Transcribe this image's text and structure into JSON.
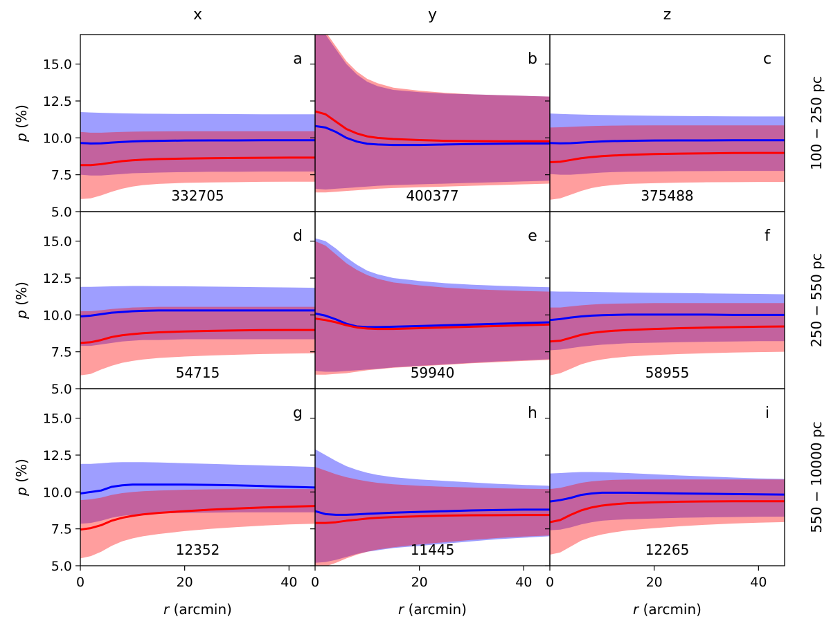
{
  "chart_data": {
    "type": "area",
    "columns": [
      "x",
      "y",
      "z"
    ],
    "rows": [
      "100 − 250 pc",
      "250 − 550 pc",
      "550 − 10000 pc"
    ],
    "xlabel_italic": "r",
    "xlabel_rest": " (arcmin)",
    "ylabel_italic": "p",
    "ylabel_rest": " (%)",
    "xlim": [
      0,
      45
    ],
    "ylim": [
      5.0,
      17.0
    ],
    "xticks": [
      0,
      20,
      40
    ],
    "yticks": [
      5.0,
      7.5,
      10.0,
      12.5,
      15.0
    ],
    "ytick_labels": [
      "5.0",
      "7.5",
      "10.0",
      "12.5",
      "15.0"
    ],
    "colors": {
      "blue_line": "#0000ff",
      "red_line": "#ff0000",
      "blue_band": "#9d9dfb",
      "red_band": "#fb9d9d",
      "overlap": "#c0589a"
    },
    "r": [
      0,
      2,
      4,
      6,
      8,
      10,
      12,
      15,
      20,
      25,
      30,
      35,
      40,
      45
    ],
    "panels": [
      {
        "letter": "a",
        "count": "332705",
        "blue": {
          "mid": [
            9.65,
            9.62,
            9.63,
            9.68,
            9.72,
            9.76,
            9.78,
            9.8,
            9.82,
            9.83,
            9.83,
            9.84,
            9.84,
            9.84
          ],
          "lo": [
            7.5,
            7.45,
            7.45,
            7.5,
            7.55,
            7.6,
            7.62,
            7.65,
            7.68,
            7.7,
            7.7,
            7.72,
            7.72,
            7.72
          ],
          "hi": [
            11.75,
            11.72,
            11.7,
            11.68,
            11.66,
            11.65,
            11.64,
            11.63,
            11.62,
            11.62,
            11.61,
            11.6,
            11.6,
            11.6
          ]
        },
        "red": {
          "mid": [
            8.15,
            8.15,
            8.22,
            8.32,
            8.42,
            8.48,
            8.52,
            8.56,
            8.6,
            8.62,
            8.64,
            8.65,
            8.66,
            8.66
          ],
          "lo": [
            5.85,
            5.9,
            6.1,
            6.35,
            6.55,
            6.7,
            6.8,
            6.88,
            6.95,
            6.98,
            7.0,
            7.02,
            7.03,
            7.03
          ],
          "hi": [
            10.4,
            10.35,
            10.35,
            10.38,
            10.4,
            10.42,
            10.43,
            10.44,
            10.45,
            10.45,
            10.45,
            10.45,
            10.45,
            10.45
          ]
        }
      },
      {
        "letter": "b",
        "count": "400377",
        "blue": {
          "mid": [
            10.8,
            10.7,
            10.4,
            10.0,
            9.75,
            9.6,
            9.55,
            9.52,
            9.52,
            9.55,
            9.58,
            9.6,
            9.62,
            9.62
          ],
          "lo": [
            6.55,
            6.5,
            6.55,
            6.6,
            6.65,
            6.7,
            6.75,
            6.8,
            6.85,
            6.9,
            6.95,
            7.0,
            7.05,
            7.1
          ],
          "hi": [
            17.5,
            17.0,
            16.0,
            15.0,
            14.3,
            13.8,
            13.5,
            13.25,
            13.1,
            13.0,
            12.95,
            12.9,
            12.85,
            12.8
          ]
        },
        "red": {
          "mid": [
            11.8,
            11.6,
            11.1,
            10.6,
            10.3,
            10.1,
            10.0,
            9.92,
            9.85,
            9.8,
            9.78,
            9.77,
            9.77,
            9.77
          ],
          "lo": [
            6.3,
            6.3,
            6.35,
            6.4,
            6.45,
            6.5,
            6.55,
            6.6,
            6.65,
            6.7,
            6.75,
            6.8,
            6.85,
            6.9
          ],
          "hi": [
            18.0,
            17.2,
            16.2,
            15.2,
            14.5,
            14.0,
            13.7,
            13.4,
            13.2,
            13.05,
            12.95,
            12.9,
            12.85,
            12.8
          ]
        }
      },
      {
        "letter": "c",
        "count": "375488",
        "blue": {
          "mid": [
            9.65,
            9.63,
            9.64,
            9.68,
            9.72,
            9.76,
            9.78,
            9.8,
            9.82,
            9.83,
            9.83,
            9.84,
            9.84,
            9.84
          ],
          "lo": [
            7.55,
            7.5,
            7.5,
            7.55,
            7.6,
            7.65,
            7.68,
            7.7,
            7.72,
            7.74,
            7.75,
            7.76,
            7.76,
            7.76
          ],
          "hi": [
            11.65,
            11.62,
            11.6,
            11.58,
            11.56,
            11.55,
            11.54,
            11.52,
            11.5,
            11.48,
            11.47,
            11.46,
            11.45,
            11.45
          ]
        },
        "red": {
          "mid": [
            8.35,
            8.38,
            8.5,
            8.62,
            8.7,
            8.76,
            8.8,
            8.85,
            8.9,
            8.93,
            8.95,
            8.97,
            8.98,
            8.98
          ],
          "lo": [
            5.8,
            5.9,
            6.15,
            6.4,
            6.6,
            6.72,
            6.8,
            6.88,
            6.93,
            6.97,
            6.99,
            7.0,
            7.01,
            7.01
          ],
          "hi": [
            10.7,
            10.72,
            10.75,
            10.78,
            10.8,
            10.82,
            10.83,
            10.84,
            10.85,
            10.85,
            10.85,
            10.85,
            10.85,
            10.85
          ]
        }
      },
      {
        "letter": "d",
        "count": "54715",
        "blue": {
          "mid": [
            9.9,
            9.95,
            10.05,
            10.15,
            10.2,
            10.25,
            10.28,
            10.3,
            10.3,
            10.3,
            10.3,
            10.3,
            10.3,
            10.3
          ],
          "lo": [
            7.9,
            7.9,
            8.0,
            8.1,
            8.2,
            8.25,
            8.3,
            8.3,
            8.35,
            8.35,
            8.35,
            8.35,
            8.35,
            8.35
          ],
          "hi": [
            11.9,
            11.9,
            11.92,
            11.94,
            11.95,
            11.96,
            11.96,
            11.95,
            11.94,
            11.92,
            11.9,
            11.88,
            11.86,
            11.84
          ]
        },
        "red": {
          "mid": [
            8.1,
            8.15,
            8.3,
            8.5,
            8.62,
            8.7,
            8.76,
            8.82,
            8.88,
            8.92,
            8.95,
            8.97,
            8.98,
            8.98
          ],
          "lo": [
            5.9,
            6.0,
            6.3,
            6.55,
            6.75,
            6.88,
            6.98,
            7.08,
            7.18,
            7.25,
            7.3,
            7.35,
            7.38,
            7.4
          ],
          "hi": [
            10.25,
            10.25,
            10.32,
            10.4,
            10.45,
            10.5,
            10.52,
            10.55,
            10.55,
            10.55,
            10.55,
            10.55,
            10.55,
            10.55
          ]
        }
      },
      {
        "letter": "e",
        "count": "59940",
        "blue": {
          "mid": [
            10.1,
            9.95,
            9.7,
            9.4,
            9.22,
            9.18,
            9.18,
            9.2,
            9.25,
            9.3,
            9.35,
            9.4,
            9.45,
            9.5
          ],
          "lo": [
            6.2,
            6.15,
            6.15,
            6.2,
            6.25,
            6.3,
            6.35,
            6.45,
            6.55,
            6.65,
            6.75,
            6.85,
            6.92,
            7.0
          ],
          "hi": [
            15.2,
            15.0,
            14.5,
            13.9,
            13.4,
            13.0,
            12.75,
            12.5,
            12.3,
            12.15,
            12.05,
            11.98,
            11.92,
            11.88
          ]
        },
        "red": {
          "mid": [
            9.75,
            9.65,
            9.5,
            9.3,
            9.15,
            9.08,
            9.05,
            9.05,
            9.1,
            9.15,
            9.2,
            9.25,
            9.3,
            9.35
          ],
          "lo": [
            5.95,
            5.95,
            6.0,
            6.05,
            6.15,
            6.25,
            6.32,
            6.42,
            6.52,
            6.62,
            6.72,
            6.8,
            6.88,
            6.95
          ],
          "hi": [
            15.0,
            14.7,
            14.1,
            13.5,
            13.05,
            12.7,
            12.45,
            12.2,
            12.0,
            11.85,
            11.75,
            11.68,
            11.62,
            11.58
          ]
        }
      },
      {
        "letter": "f",
        "count": "58955",
        "blue": {
          "mid": [
            9.65,
            9.72,
            9.82,
            9.9,
            9.95,
            9.98,
            10.0,
            10.02,
            10.02,
            10.02,
            10.02,
            10.0,
            10.0,
            10.0
          ],
          "lo": [
            7.6,
            7.65,
            7.75,
            7.85,
            7.92,
            7.98,
            8.02,
            8.08,
            8.12,
            8.15,
            8.18,
            8.2,
            8.22,
            8.22
          ],
          "hi": [
            11.6,
            11.58,
            11.58,
            11.57,
            11.56,
            11.55,
            11.54,
            11.52,
            11.5,
            11.48,
            11.46,
            11.44,
            11.42,
            11.4
          ]
        },
        "red": {
          "mid": [
            8.2,
            8.25,
            8.45,
            8.65,
            8.78,
            8.86,
            8.92,
            8.98,
            9.05,
            9.1,
            9.14,
            9.17,
            9.2,
            9.22
          ],
          "lo": [
            5.9,
            6.05,
            6.35,
            6.65,
            6.85,
            6.98,
            7.08,
            7.18,
            7.28,
            7.35,
            7.4,
            7.45,
            7.48,
            7.5
          ],
          "hi": [
            10.5,
            10.5,
            10.58,
            10.65,
            10.7,
            10.74,
            10.76,
            10.78,
            10.8,
            10.8,
            10.8,
            10.8,
            10.8,
            10.8
          ]
        }
      },
      {
        "letter": "g",
        "count": "12352",
        "blue": {
          "mid": [
            9.9,
            10.0,
            10.1,
            10.35,
            10.45,
            10.5,
            10.5,
            10.5,
            10.5,
            10.48,
            10.45,
            10.4,
            10.35,
            10.3
          ],
          "lo": [
            7.85,
            7.9,
            8.05,
            8.25,
            8.38,
            8.45,
            8.5,
            8.55,
            8.58,
            8.6,
            8.62,
            8.62,
            8.62,
            8.62
          ],
          "hi": [
            11.9,
            11.9,
            11.95,
            12.0,
            12.02,
            12.02,
            12.02,
            12.0,
            11.95,
            11.9,
            11.85,
            11.8,
            11.75,
            11.7
          ]
        },
        "red": {
          "mid": [
            7.45,
            7.55,
            7.75,
            8.05,
            8.25,
            8.38,
            8.48,
            8.58,
            8.7,
            8.8,
            8.88,
            8.95,
            9.0,
            9.05
          ],
          "lo": [
            5.5,
            5.65,
            5.95,
            6.35,
            6.65,
            6.85,
            7.0,
            7.15,
            7.35,
            7.5,
            7.62,
            7.72,
            7.8,
            7.85
          ],
          "hi": [
            9.45,
            9.5,
            9.62,
            9.8,
            9.92,
            10.0,
            10.05,
            10.1,
            10.15,
            10.18,
            10.2,
            10.2,
            10.2,
            10.2
          ]
        }
      },
      {
        "letter": "h",
        "count": "11445",
        "blue": {
          "mid": [
            8.7,
            8.5,
            8.45,
            8.45,
            8.48,
            8.52,
            8.55,
            8.6,
            8.65,
            8.7,
            8.75,
            8.78,
            8.8,
            8.8
          ],
          "lo": [
            5.2,
            5.25,
            5.4,
            5.6,
            5.8,
            5.95,
            6.05,
            6.2,
            6.35,
            6.5,
            6.65,
            6.8,
            6.9,
            7.0
          ],
          "hi": [
            12.9,
            12.5,
            12.1,
            11.75,
            11.5,
            11.3,
            11.15,
            11.0,
            10.85,
            10.75,
            10.65,
            10.55,
            10.48,
            10.42
          ]
        },
        "red": {
          "mid": [
            7.9,
            7.9,
            7.95,
            8.05,
            8.12,
            8.2,
            8.25,
            8.3,
            8.35,
            8.4,
            8.42,
            8.43,
            8.44,
            8.44
          ],
          "lo": [
            4.8,
            4.95,
            5.2,
            5.5,
            5.75,
            5.95,
            6.1,
            6.25,
            6.45,
            6.6,
            6.75,
            6.88,
            6.98,
            7.05
          ],
          "hi": [
            11.7,
            11.45,
            11.2,
            11.0,
            10.85,
            10.72,
            10.62,
            10.52,
            10.42,
            10.35,
            10.3,
            10.25,
            10.22,
            10.2
          ]
        }
      },
      {
        "letter": "i",
        "count": "12265",
        "blue": {
          "mid": [
            9.35,
            9.45,
            9.6,
            9.8,
            9.9,
            9.95,
            9.95,
            9.95,
            9.93,
            9.9,
            9.88,
            9.86,
            9.84,
            9.82
          ],
          "lo": [
            7.4,
            7.45,
            7.6,
            7.8,
            7.95,
            8.05,
            8.1,
            8.15,
            8.2,
            8.25,
            8.28,
            8.3,
            8.32,
            8.33
          ],
          "hi": [
            11.25,
            11.28,
            11.32,
            11.35,
            11.35,
            11.34,
            11.32,
            11.28,
            11.2,
            11.12,
            11.05,
            10.98,
            10.92,
            10.88
          ]
        },
        "red": {
          "mid": [
            7.95,
            8.1,
            8.45,
            8.75,
            8.95,
            9.08,
            9.16,
            9.24,
            9.3,
            9.34,
            9.36,
            9.37,
            9.37,
            9.37
          ],
          "lo": [
            5.75,
            5.9,
            6.3,
            6.7,
            6.95,
            7.12,
            7.25,
            7.4,
            7.55,
            7.68,
            7.78,
            7.86,
            7.92,
            7.96
          ],
          "hi": [
            10.2,
            10.28,
            10.45,
            10.62,
            10.72,
            10.78,
            10.82,
            10.84,
            10.85,
            10.85,
            10.85,
            10.85,
            10.85,
            10.85
          ]
        }
      }
    ]
  }
}
